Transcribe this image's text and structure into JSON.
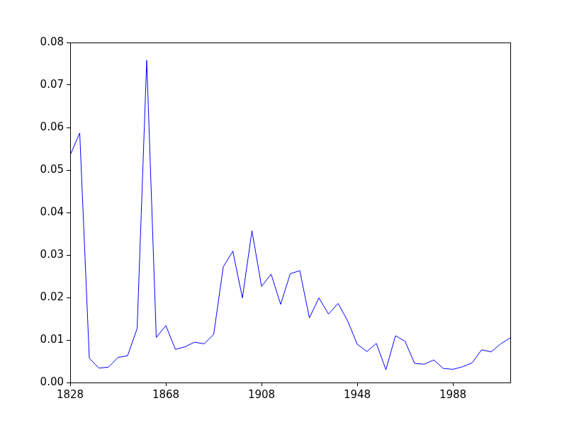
{
  "chart_data": {
    "type": "line",
    "x": [
      1828,
      1832,
      1836,
      1840,
      1844,
      1848,
      1852,
      1856,
      1860,
      1864,
      1868,
      1872,
      1876,
      1880,
      1884,
      1888,
      1892,
      1896,
      1900,
      1904,
      1908,
      1912,
      1916,
      1920,
      1924,
      1928,
      1932,
      1936,
      1940,
      1944,
      1948,
      1952,
      1956,
      1960,
      1964,
      1968,
      1972,
      1976,
      1980,
      1984,
      1988,
      1992,
      1996,
      2000,
      2004,
      2008,
      2012
    ],
    "values": [
      0.0535,
      0.0587,
      0.0057,
      0.0034,
      0.0036,
      0.0059,
      0.0063,
      0.0127,
      0.0758,
      0.0106,
      0.0134,
      0.0078,
      0.0084,
      0.0095,
      0.0091,
      0.0113,
      0.0272,
      0.0309,
      0.0199,
      0.0357,
      0.0226,
      0.0255,
      0.0184,
      0.0256,
      0.0263,
      0.0152,
      0.0199,
      0.0161,
      0.0186,
      0.0145,
      0.009,
      0.0073,
      0.0092,
      0.003,
      0.011,
      0.0097,
      0.0045,
      0.0043,
      0.0053,
      0.0033,
      0.0031,
      0.0037,
      0.0046,
      0.0077,
      0.0072,
      0.0091,
      0.0105
    ],
    "color": "#0000ff",
    "xlim": [
      1828,
      2012
    ],
    "xticks": [
      1828,
      1868,
      1908,
      1948,
      1988
    ],
    "ylim": [
      0,
      0.08
    ],
    "yticks": [
      {
        "value": 0,
        "label": "0.00"
      },
      {
        "value": 0.01,
        "label": "0.01"
      },
      {
        "value": 0.02,
        "label": "0.02"
      },
      {
        "value": 0.03,
        "label": "0.03"
      },
      {
        "value": 0.04,
        "label": "0.04"
      },
      {
        "value": 0.05,
        "label": "0.05"
      },
      {
        "value": 0.06,
        "label": "0.06"
      },
      {
        "value": 0.07,
        "label": "0.07"
      },
      {
        "value": 0.08,
        "label": "0.08"
      }
    ],
    "grid": false
  }
}
